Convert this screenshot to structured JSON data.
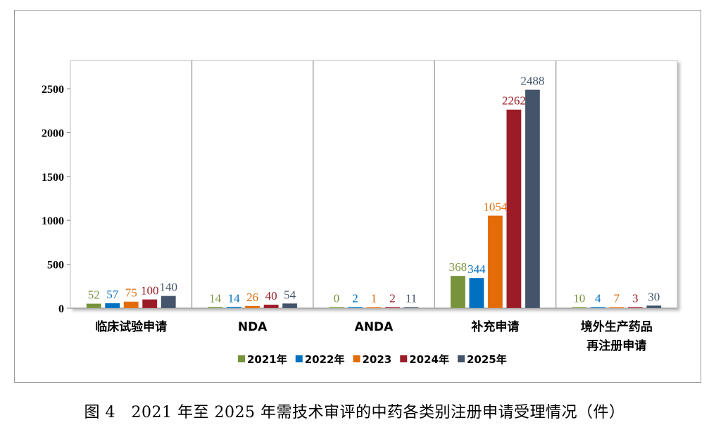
{
  "caption": "图 4　2021 年至 2025 年需技术审评的中药各类别注册申请受理情况（件）",
  "colors": {
    "s2021": "#77933c",
    "s2022": "#0070c0",
    "s2023": "#e36c09",
    "s2024": "#9b1c26",
    "s2025": "#44546a"
  },
  "chart_data": {
    "type": "bar",
    "categories": [
      [
        "临床试验申请"
      ],
      [
        "NDA"
      ],
      [
        "ANDA"
      ],
      [
        "补充申请"
      ],
      [
        "境外生产药品",
        "再注册申请"
      ]
    ],
    "series": [
      {
        "name": "2021年",
        "color_key": "s2021",
        "values": [
          52,
          14,
          0,
          368,
          10
        ]
      },
      {
        "name": "2022年",
        "color_key": "s2022",
        "values": [
          57,
          14,
          2,
          344,
          4
        ]
      },
      {
        "name": "2023",
        "color_key": "s2023",
        "values": [
          75,
          26,
          1,
          1054,
          7
        ]
      },
      {
        "name": "2024年",
        "color_key": "s2024",
        "values": [
          100,
          40,
          2,
          2262,
          3
        ]
      },
      {
        "name": "2025年",
        "color_key": "s2025",
        "values": [
          140,
          54,
          11,
          2488,
          30
        ]
      }
    ],
    "yticks": [
      0,
      500,
      1000,
      1500,
      2000,
      2500
    ],
    "ylim": [
      0,
      2700
    ],
    "legend_position": "bottom",
    "grid": false
  }
}
